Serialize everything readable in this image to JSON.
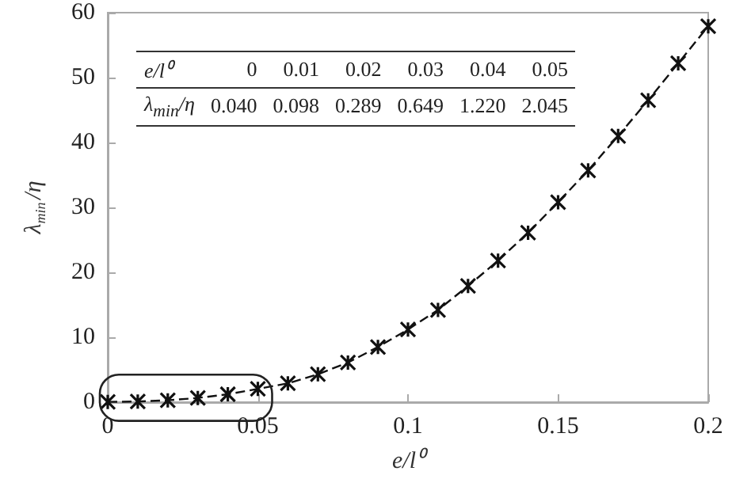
{
  "chart_data": {
    "type": "line",
    "xlabel": "e/l⁰",
    "ylabel": "λ$_{min}$/η",
    "x": [
      0,
      0.01,
      0.02,
      0.03,
      0.04,
      0.05,
      0.06,
      0.07,
      0.08,
      0.09,
      0.1,
      0.11,
      0.12,
      0.13,
      0.14,
      0.15,
      0.16,
      0.17,
      0.18,
      0.19,
      0.2
    ],
    "series": [
      {
        "color": "#111111",
        "values": [
          0.04,
          0.098,
          0.289,
          0.649,
          1.22,
          2.045,
          2.9,
          4.3,
          6.1,
          8.5,
          11.2,
          14.2,
          17.9,
          21.8,
          26.1,
          30.8,
          35.7,
          41.0,
          46.5,
          52.2,
          57.9
        ]
      }
    ],
    "xlim": [
      0,
      0.2
    ],
    "xticks": [
      0,
      0.05,
      0.1,
      0.15,
      0.2
    ],
    "ylim": [
      0,
      60
    ],
    "yticks": [
      0,
      10,
      20,
      30,
      40,
      50,
      60
    ],
    "annotations": [
      "0",
      "0.01",
      "0.02",
      "0.03",
      "0.04",
      "0.05",
      "0.040",
      "0.098",
      "0.289",
      "0.649",
      "1.220",
      "2.045"
    ],
    "marker": "cross",
    "line_style": "dashed"
  }
}
